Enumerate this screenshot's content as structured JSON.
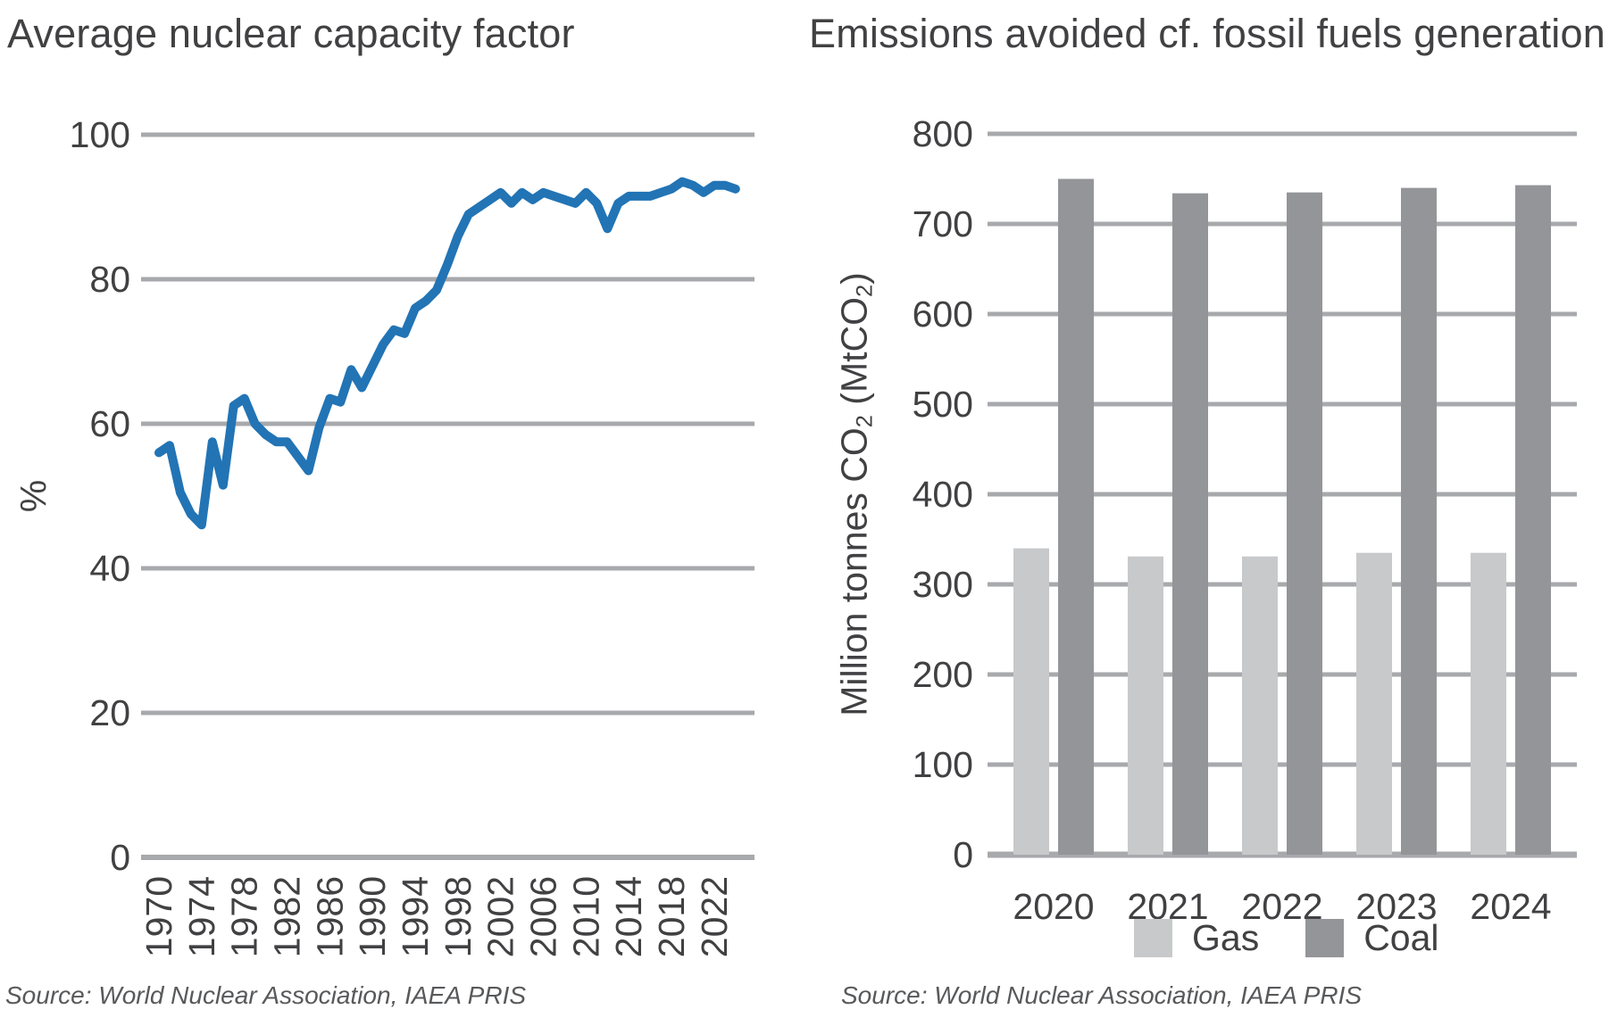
{
  "colors": {
    "background": "#ffffff",
    "line_blue": "#2274b5",
    "gas_gray": "#c8c9cb",
    "coal_gray": "#939598",
    "grid_gray": "#a7a9ac",
    "text_dark": "#414042",
    "source_gray": "#58595b"
  },
  "chart_data": [
    {
      "type": "line",
      "title": "Average nuclear capacity factor",
      "ylabel": "%",
      "source": "Source: World Nuclear Association, IAEA PRIS",
      "ylim": [
        0,
        100
      ],
      "yticks": [
        0,
        20,
        40,
        60,
        80,
        100
      ],
      "xticks": [
        1970,
        1974,
        1978,
        1982,
        1986,
        1990,
        1994,
        1998,
        2002,
        2006,
        2010,
        2014,
        2018,
        2022
      ],
      "grid": "horizontal",
      "legend_position": "none",
      "line_color": "#2274b5",
      "x": [
        1970,
        1971,
        1972,
        1973,
        1974,
        1975,
        1976,
        1977,
        1978,
        1979,
        1980,
        1981,
        1982,
        1983,
        1984,
        1985,
        1986,
        1987,
        1988,
        1989,
        1990,
        1991,
        1992,
        1993,
        1994,
        1995,
        1996,
        1997,
        1998,
        1999,
        2000,
        2001,
        2002,
        2003,
        2004,
        2005,
        2006,
        2007,
        2008,
        2009,
        2010,
        2011,
        2012,
        2013,
        2014,
        2015,
        2016,
        2017,
        2018,
        2019,
        2020,
        2021,
        2022,
        2023,
        2024
      ],
      "values": [
        56,
        57,
        50.5,
        47.5,
        46,
        57.5,
        51.5,
        62.5,
        63.5,
        60,
        58.5,
        57.5,
        57.5,
        55.5,
        53.5,
        59.5,
        63.5,
        63,
        67.5,
        65,
        68,
        71,
        73,
        72.5,
        76,
        77,
        78.5,
        82,
        86,
        89,
        90,
        91,
        92,
        90.5,
        92,
        91,
        92,
        91.5,
        91,
        90.5,
        92,
        90.5,
        87,
        90.5,
        91.5,
        91.5,
        91.5,
        92,
        92.5,
        93.5,
        93,
        92,
        93,
        93,
        92.5
      ]
    },
    {
      "type": "bar",
      "title": "Emissions avoided cf. fossil fuels generation",
      "ylabel": "Million tonnes CO₂ (MtCO₂)",
      "ylabel_parts": [
        {
          "text": "Million tonnes CO"
        },
        {
          "text": "2",
          "sub": true
        },
        {
          "text": " (MtCO"
        },
        {
          "text": "2",
          "sub": true
        },
        {
          "text": ")"
        }
      ],
      "source": "Source: World Nuclear Association, IAEA PRIS",
      "ylim": [
        0,
        800
      ],
      "yticks": [
        0,
        100,
        200,
        300,
        400,
        500,
        600,
        700,
        800
      ],
      "grid": "horizontal",
      "legend_position": "bottom",
      "categories": [
        "2020",
        "2021",
        "2022",
        "2023",
        "2024"
      ],
      "series": [
        {
          "name": "Gas",
          "color": "#c8c9cb",
          "values": [
            340,
            331,
            331,
            335,
            335
          ]
        },
        {
          "name": "Coal",
          "color": "#939598",
          "values": [
            750,
            734,
            735,
            740,
            743
          ]
        }
      ]
    }
  ]
}
